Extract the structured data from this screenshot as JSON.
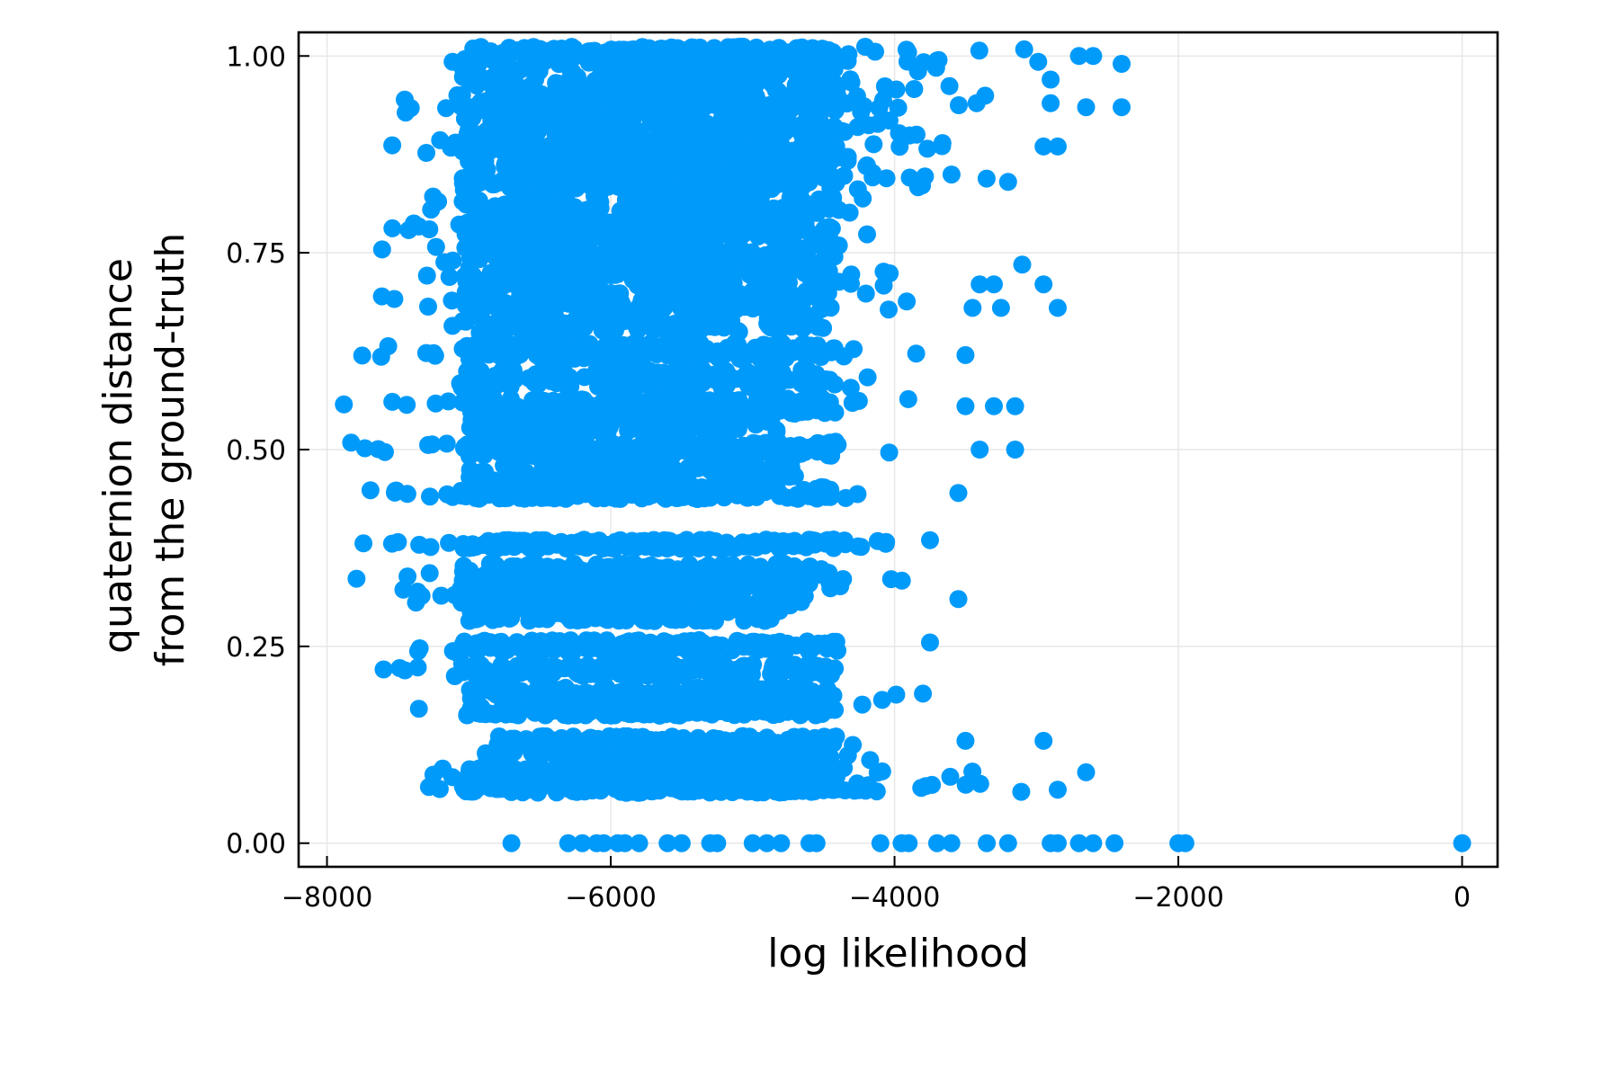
{
  "chart_data": {
    "type": "scatter",
    "title": "",
    "xlabel": "log likelihood",
    "ylabel_lines": [
      "quaternion distance",
      "from the ground-truth"
    ],
    "xlim": [
      -8200,
      250
    ],
    "ylim": [
      -0.03,
      1.03
    ],
    "xticks": [
      -8000,
      -6000,
      -4000,
      -2000,
      0
    ],
    "xtick_labels": [
      "−8000",
      "−6000",
      "−4000",
      "−2000",
      "0"
    ],
    "yticks": [
      0.0,
      0.25,
      0.5,
      0.75,
      1.0
    ],
    "ytick_labels": [
      "0.00",
      "0.25",
      "0.50",
      "0.75",
      "1.00"
    ],
    "grid": true,
    "legend": "none",
    "marker_color": "#009AFA",
    "series": [
      {
        "bands": [
          {
            "y": 1.0,
            "x": [
              -7200,
              -2900
            ],
            "n": 95,
            "jitter": 0.012
          },
          {
            "y": 0.97,
            "x": [
              -7400,
              -3400
            ],
            "n": 80,
            "jitter": 0.015
          },
          {
            "y": 0.94,
            "x": [
              -7600,
              -3300
            ],
            "n": 90,
            "jitter": 0.012
          },
          {
            "y": 0.91,
            "x": [
              -7300,
              -3700
            ],
            "n": 70,
            "jitter": 0.012
          },
          {
            "y": 0.885,
            "x": [
              -7600,
              -3600
            ],
            "n": 85,
            "jitter": 0.01
          },
          {
            "y": 0.86,
            "x": [
              -7300,
              -3700
            ],
            "n": 75,
            "jitter": 0.012
          },
          {
            "y": 0.84,
            "x": [
              -7600,
              -3300
            ],
            "n": 80,
            "jitter": 0.01
          },
          {
            "y": 0.81,
            "x": [
              -7300,
              -3800
            ],
            "n": 70,
            "jitter": 0.012
          },
          {
            "y": 0.78,
            "x": [
              -7800,
              -3900
            ],
            "n": 90,
            "jitter": 0.01
          },
          {
            "y": 0.75,
            "x": [
              -7700,
              -4100
            ],
            "n": 85,
            "jitter": 0.012
          },
          {
            "y": 0.72,
            "x": [
              -7400,
              -3600
            ],
            "n": 80,
            "jitter": 0.012
          },
          {
            "y": 0.69,
            "x": [
              -7800,
              -3800
            ],
            "n": 95,
            "jitter": 0.012
          },
          {
            "y": 0.66,
            "x": [
              -7500,
              -4500
            ],
            "n": 60,
            "jitter": 0.012
          },
          {
            "y": 0.625,
            "x": [
              -8000,
              -3800
            ],
            "n": 95,
            "jitter": 0.01
          },
          {
            "y": 0.59,
            "x": [
              -7100,
              -4000
            ],
            "n": 70,
            "jitter": 0.012
          },
          {
            "y": 0.555,
            "x": [
              -7900,
              -3600
            ],
            "n": 85,
            "jitter": 0.01
          },
          {
            "y": 0.53,
            "x": [
              -7300,
              -4800
            ],
            "n": 60,
            "jitter": 0.012
          },
          {
            "y": 0.5,
            "x": [
              -7900,
              -3800
            ],
            "n": 95,
            "jitter": 0.01
          },
          {
            "y": 0.47,
            "x": [
              -7300,
              -4700
            ],
            "n": 65,
            "jitter": 0.012
          },
          {
            "y": 0.445,
            "x": [
              -7900,
              -4200
            ],
            "n": 95,
            "jitter": 0.008
          },
          {
            "y": 0.38,
            "x": [
              -7800,
              -4000
            ],
            "n": 90,
            "jitter": 0.006
          },
          {
            "y": 0.345,
            "x": [
              -7500,
              -4200
            ],
            "n": 80,
            "jitter": 0.01
          },
          {
            "y": 0.33,
            "x": [
              -8000,
              -3900
            ],
            "n": 95,
            "jitter": 0.008
          },
          {
            "y": 0.31,
            "x": [
              -7400,
              -4600
            ],
            "n": 70,
            "jitter": 0.01
          },
          {
            "y": 0.29,
            "x": [
              -7000,
              -4800
            ],
            "n": 60,
            "jitter": 0.008
          },
          {
            "y": 0.25,
            "x": [
              -7600,
              -4100
            ],
            "n": 85,
            "jitter": 0.008
          },
          {
            "y": 0.22,
            "x": [
              -7700,
              -4100
            ],
            "n": 90,
            "jitter": 0.008
          },
          {
            "y": 0.19,
            "x": [
              -7000,
              -3900
            ],
            "n": 75,
            "jitter": 0.008
          },
          {
            "y": 0.17,
            "x": [
              -7600,
              -4000
            ],
            "n": 85,
            "jitter": 0.008
          },
          {
            "y": 0.13,
            "x": [
              -6800,
              -4000
            ],
            "n": 60,
            "jitter": 0.006
          },
          {
            "y": 0.11,
            "x": [
              -6900,
              -4100
            ],
            "n": 60,
            "jitter": 0.006
          },
          {
            "y": 0.09,
            "x": [
              -7300,
              -3200
            ],
            "n": 80,
            "jitter": 0.006
          },
          {
            "y": 0.07,
            "x": [
              -7300,
              -3100
            ],
            "n": 95,
            "jitter": 0.006
          }
        ],
        "points": [
          {
            "x": -2400,
            "y": 0.99
          },
          {
            "x": -2400,
            "y": 0.935
          },
          {
            "x": -2600,
            "y": 1.0
          },
          {
            "x": -2700,
            "y": 1.0
          },
          {
            "x": -2650,
            "y": 0.935
          },
          {
            "x": -2900,
            "y": 0.97
          },
          {
            "x": -2850,
            "y": 0.885
          },
          {
            "x": -2950,
            "y": 0.885
          },
          {
            "x": -2900,
            "y": 0.94
          },
          {
            "x": -3100,
            "y": 0.735
          },
          {
            "x": -2950,
            "y": 0.71
          },
          {
            "x": -2850,
            "y": 0.68
          },
          {
            "x": -3300,
            "y": 0.71
          },
          {
            "x": -3400,
            "y": 0.71
          },
          {
            "x": -3450,
            "y": 0.68
          },
          {
            "x": -3250,
            "y": 0.68
          },
          {
            "x": -3500,
            "y": 0.62
          },
          {
            "x": -3300,
            "y": 0.555
          },
          {
            "x": -3150,
            "y": 0.555
          },
          {
            "x": -3500,
            "y": 0.555
          },
          {
            "x": -3150,
            "y": 0.5
          },
          {
            "x": -3400,
            "y": 0.5
          },
          {
            "x": -3550,
            "y": 0.445
          },
          {
            "x": -3550,
            "y": 0.31
          },
          {
            "x": -3750,
            "y": 0.385
          },
          {
            "x": -3750,
            "y": 0.255
          },
          {
            "x": -3800,
            "y": 0.19
          },
          {
            "x": -3500,
            "y": 0.13
          },
          {
            "x": -2950,
            "y": 0.13
          },
          {
            "x": -2650,
            "y": 0.09
          },
          {
            "x": -2850,
            "y": 0.068
          },
          {
            "x": -3200,
            "y": 0.84
          },
          {
            "x": -6700,
            "y": 0.0
          },
          {
            "x": -6300,
            "y": 0.0
          },
          {
            "x": -6200,
            "y": 0.0
          },
          {
            "x": -6100,
            "y": 0.0
          },
          {
            "x": -6050,
            "y": 0.0
          },
          {
            "x": -5950,
            "y": 0.0
          },
          {
            "x": -5900,
            "y": 0.0
          },
          {
            "x": -5800,
            "y": 0.0
          },
          {
            "x": -5600,
            "y": 0.0
          },
          {
            "x": -5500,
            "y": 0.0
          },
          {
            "x": -5300,
            "y": 0.0
          },
          {
            "x": -5250,
            "y": 0.0
          },
          {
            "x": -5000,
            "y": 0.0
          },
          {
            "x": -4900,
            "y": 0.0
          },
          {
            "x": -4800,
            "y": 0.0
          },
          {
            "x": -4600,
            "y": 0.0
          },
          {
            "x": -4550,
            "y": 0.0
          },
          {
            "x": -4100,
            "y": 0.0
          },
          {
            "x": -3950,
            "y": 0.0
          },
          {
            "x": -3900,
            "y": 0.0
          },
          {
            "x": -3700,
            "y": 0.0
          },
          {
            "x": -3600,
            "y": 0.0
          },
          {
            "x": -3350,
            "y": 0.0
          },
          {
            "x": -3200,
            "y": 0.0
          },
          {
            "x": -2900,
            "y": 0.0
          },
          {
            "x": -2850,
            "y": 0.0
          },
          {
            "x": -2700,
            "y": 0.0
          },
          {
            "x": -2600,
            "y": 0.0
          },
          {
            "x": -2450,
            "y": 0.0
          },
          {
            "x": -2000,
            "y": 0.0
          },
          {
            "x": -1950,
            "y": 0.0
          },
          {
            "x": 0,
            "y": 0.0
          }
        ]
      }
    ]
  }
}
